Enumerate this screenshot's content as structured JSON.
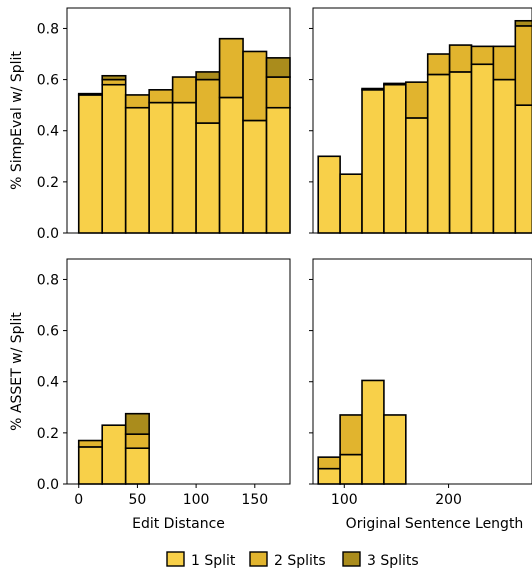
{
  "chart_data": [
    {
      "type": "bar",
      "panel": "top-left",
      "ylabel": "% SimpEval w/ Split",
      "xlabel": "",
      "xlim": [
        -10,
        180
      ],
      "ylim": [
        0,
        0.88
      ],
      "yticks": [
        "0.0",
        "0.2",
        "0.4",
        "0.6",
        "0.8"
      ],
      "bins": [
        [
          0,
          20
        ],
        [
          20,
          40
        ],
        [
          40,
          60
        ],
        [
          60,
          80
        ],
        [
          80,
          100
        ],
        [
          100,
          120
        ],
        [
          120,
          140
        ],
        [
          140,
          160
        ],
        [
          160,
          180
        ]
      ],
      "series": [
        {
          "name": "1 Split",
          "values": [
            0.54,
            0.58,
            0.49,
            0.51,
            0.51,
            0.43,
            0.53,
            0.44,
            0.49
          ]
        },
        {
          "name": "2 Splits",
          "values": [
            0.005,
            0.02,
            0.05,
            0.05,
            0.1,
            0.17,
            0.23,
            0.27,
            0.12
          ]
        },
        {
          "name": "3 Splits",
          "values": [
            0.0,
            0.015,
            0.0,
            0.0,
            0.0,
            0.03,
            0.0,
            0.0,
            0.075
          ]
        }
      ]
    },
    {
      "type": "bar",
      "panel": "top-right",
      "ylabel": "",
      "xlabel": "",
      "xlim": [
        70,
        280
      ],
      "ylim": [
        0,
        0.88
      ],
      "bins": [
        [
          75,
          96
        ],
        [
          96,
          117
        ],
        [
          117,
          138
        ],
        [
          138,
          159
        ],
        [
          159,
          180
        ],
        [
          180,
          201
        ],
        [
          201,
          222
        ],
        [
          222,
          243
        ],
        [
          243,
          264
        ],
        [
          264,
          285
        ]
      ],
      "series": [
        {
          "name": "1 Split",
          "values": [
            0.3,
            0.23,
            0.56,
            0.58,
            0.45,
            0.62,
            0.63,
            0.66,
            0.6,
            0.5
          ]
        },
        {
          "name": "2 Splits",
          "values": [
            0.0,
            0.0,
            0.005,
            0.005,
            0.14,
            0.08,
            0.105,
            0.07,
            0.13,
            0.31
          ]
        },
        {
          "name": "3 Splits",
          "values": [
            0.0,
            0.0,
            0.0,
            0.0,
            0.0,
            0.0,
            0.0,
            0.0,
            0.0,
            0.02
          ]
        }
      ]
    },
    {
      "type": "bar",
      "panel": "bottom-left",
      "ylabel": "% ASSET w/ Split",
      "xlabel": "Edit Distance",
      "xlim": [
        -10,
        180
      ],
      "ylim": [
        0,
        0.88
      ],
      "xticks": [
        "0",
        "50",
        "100",
        "150"
      ],
      "yticks": [
        "0.0",
        "0.2",
        "0.4",
        "0.6",
        "0.8"
      ],
      "bins": [
        [
          0,
          20
        ],
        [
          20,
          40
        ],
        [
          40,
          60
        ]
      ],
      "series": [
        {
          "name": "1 Split",
          "values": [
            0.145,
            0.23,
            0.14
          ]
        },
        {
          "name": "2 Splits",
          "values": [
            0.025,
            0.0,
            0.055
          ]
        },
        {
          "name": "3 Splits",
          "values": [
            0.0,
            0.0,
            0.08
          ]
        }
      ]
    },
    {
      "type": "bar",
      "panel": "bottom-right",
      "ylabel": "",
      "xlabel": "Original Sentence Length",
      "xlim": [
        70,
        280
      ],
      "ylim": [
        0,
        0.88
      ],
      "xticks": [
        "100",
        "200"
      ],
      "bins": [
        [
          75,
          96
        ],
        [
          96,
          117
        ],
        [
          117,
          138
        ],
        [
          138,
          159
        ]
      ],
      "series": [
        {
          "name": "1 Split",
          "values": [
            0.06,
            0.115,
            0.405,
            0.27
          ]
        },
        {
          "name": "2 Splits",
          "values": [
            0.045,
            0.155,
            0.0,
            0.0
          ]
        },
        {
          "name": "3 Splits",
          "values": [
            0.0,
            0.0,
            0.0,
            0.0
          ]
        }
      ]
    }
  ],
  "legend": [
    {
      "label": "1 Split",
      "color": "#f8d049"
    },
    {
      "label": "2 Splits",
      "color": "#e1b42e"
    },
    {
      "label": "3 Splits",
      "color": "#aa8c1c"
    }
  ],
  "colors": {
    "split1": "#f8d049",
    "split2": "#e1b42e",
    "split3": "#aa8c1c",
    "edge": "#000000"
  }
}
